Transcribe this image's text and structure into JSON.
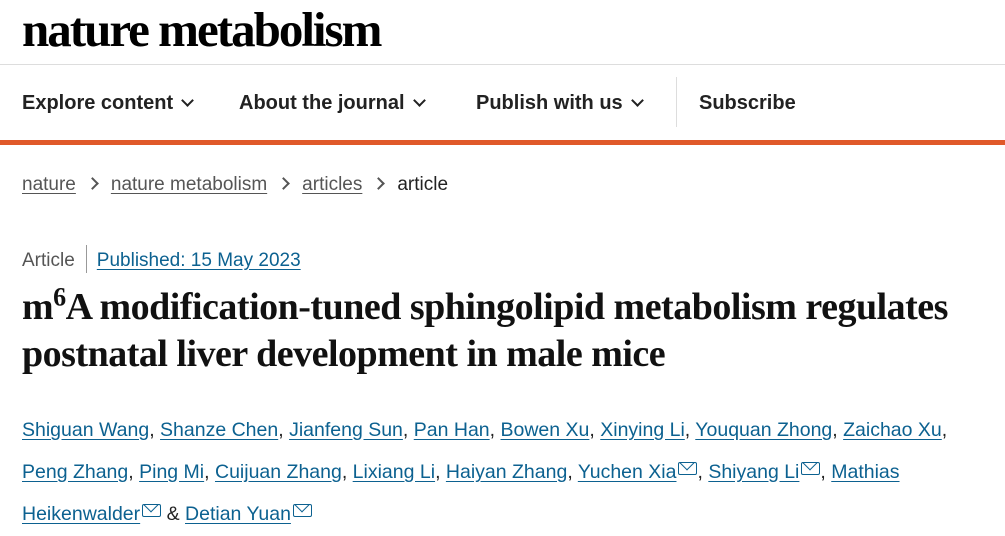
{
  "site": {
    "logo": "nature metabolism"
  },
  "nav": {
    "items": [
      {
        "label": "Explore content"
      },
      {
        "label": "About the journal"
      },
      {
        "label": "Publish with us"
      }
    ],
    "subscribe": "Subscribe",
    "accent_color": "#e0592a"
  },
  "breadcrumb": {
    "links": [
      "nature",
      "nature metabolism",
      "articles"
    ],
    "current": "article"
  },
  "article": {
    "type": "Article",
    "published": "Published: 15 May 2023",
    "title_m": "m",
    "title_sup": "6",
    "title_rest": "A modification-tuned sphingolipid metabolism regulates postnatal liver development in male mice",
    "authors": [
      "Shiguan Wang",
      "Shanze Chen",
      "Jianfeng Sun",
      "Pan Han",
      "Bowen Xu",
      "Xinying Li",
      "Youquan Zhong",
      "Zaichao Xu",
      "Peng Zhang",
      "Ping Mi",
      "Cuijuan Zhang",
      "Lixiang Li",
      "Haiyan Zhang",
      "Yuchen Xia",
      "Shiyang Li",
      "Mathias Heikenwalder",
      "Detian Yuan"
    ],
    "and_sign": "&",
    "link_color": "#0c6190"
  }
}
